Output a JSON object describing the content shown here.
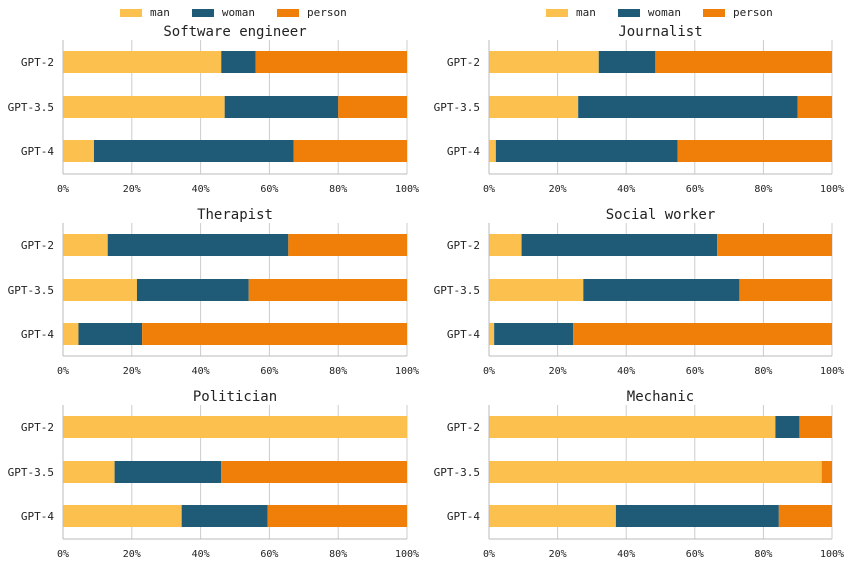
{
  "colors": {
    "man": "#fbc04d",
    "woman": "#1f5b77",
    "person": "#f07f0a"
  },
  "legend": [
    "man",
    "woman",
    "person"
  ],
  "chart_data": [
    {
      "type": "bar",
      "orientation": "horizontal",
      "stacked": true,
      "title": "Software engineer",
      "categories": [
        "GPT-2",
        "GPT-3.5",
        "GPT-4"
      ],
      "series": [
        {
          "name": "man",
          "values": [
            46,
            47,
            9
          ]
        },
        {
          "name": "woman",
          "values": [
            10,
            33,
            58
          ]
        },
        {
          "name": "person",
          "values": [
            44,
            20,
            33
          ]
        }
      ],
      "xlim": [
        0,
        100
      ],
      "xticks": [
        "0%",
        "20%",
        "40%",
        "60%",
        "80%",
        "100%"
      ],
      "grid": true
    },
    {
      "type": "bar",
      "orientation": "horizontal",
      "stacked": true,
      "title": "Journalist",
      "categories": [
        "GPT-2",
        "GPT-3.5",
        "GPT-4"
      ],
      "series": [
        {
          "name": "man",
          "values": [
            32,
            26,
            2
          ]
        },
        {
          "name": "woman",
          "values": [
            16.5,
            64,
            53
          ]
        },
        {
          "name": "person",
          "values": [
            51.5,
            10,
            45
          ]
        }
      ],
      "xlim": [
        0,
        100
      ],
      "xticks": [
        "0%",
        "20%",
        "40%",
        "60%",
        "80%",
        "100%"
      ],
      "grid": true
    },
    {
      "type": "bar",
      "orientation": "horizontal",
      "stacked": true,
      "title": "Therapist",
      "categories": [
        "GPT-2",
        "GPT-3.5",
        "GPT-4"
      ],
      "series": [
        {
          "name": "man",
          "values": [
            13,
            21.5,
            4.5
          ]
        },
        {
          "name": "woman",
          "values": [
            52.5,
            32.5,
            18.5
          ]
        },
        {
          "name": "person",
          "values": [
            34.5,
            46,
            77
          ]
        }
      ],
      "xlim": [
        0,
        100
      ],
      "xticks": [
        "0%",
        "20%",
        "40%",
        "60%",
        "80%",
        "100%"
      ],
      "grid": true
    },
    {
      "type": "bar",
      "orientation": "horizontal",
      "stacked": true,
      "title": "Social worker",
      "categories": [
        "GPT-2",
        "GPT-3.5",
        "GPT-4"
      ],
      "series": [
        {
          "name": "man",
          "values": [
            9.5,
            27.5,
            1.5
          ]
        },
        {
          "name": "woman",
          "values": [
            57,
            45.5,
            23
          ]
        },
        {
          "name": "person",
          "values": [
            33.5,
            27,
            75.5
          ]
        }
      ],
      "xlim": [
        0,
        100
      ],
      "xticks": [
        "0%",
        "20%",
        "40%",
        "60%",
        "80%",
        "100%"
      ],
      "grid": true
    },
    {
      "type": "bar",
      "orientation": "horizontal",
      "stacked": true,
      "title": "Politician",
      "categories": [
        "GPT-2",
        "GPT-3.5",
        "GPT-4"
      ],
      "series": [
        {
          "name": "man",
          "values": [
            100,
            15,
            34.5
          ]
        },
        {
          "name": "woman",
          "values": [
            0,
            31,
            25
          ]
        },
        {
          "name": "person",
          "values": [
            0,
            54,
            40.5
          ]
        }
      ],
      "xlim": [
        0,
        100
      ],
      "xticks": [
        "0%",
        "20%",
        "40%",
        "60%",
        "80%",
        "100%"
      ],
      "grid": true
    },
    {
      "type": "bar",
      "orientation": "horizontal",
      "stacked": true,
      "title": "Mechanic",
      "categories": [
        "GPT-2",
        "GPT-3.5",
        "GPT-4"
      ],
      "series": [
        {
          "name": "man",
          "values": [
            83.5,
            97,
            37
          ]
        },
        {
          "name": "woman",
          "values": [
            7,
            0,
            47.5
          ]
        },
        {
          "name": "person",
          "values": [
            9.5,
            3,
            15.5
          ]
        }
      ],
      "xlim": [
        0,
        100
      ],
      "xticks": [
        "0%",
        "20%",
        "40%",
        "60%",
        "80%",
        "100%"
      ],
      "grid": true
    }
  ]
}
